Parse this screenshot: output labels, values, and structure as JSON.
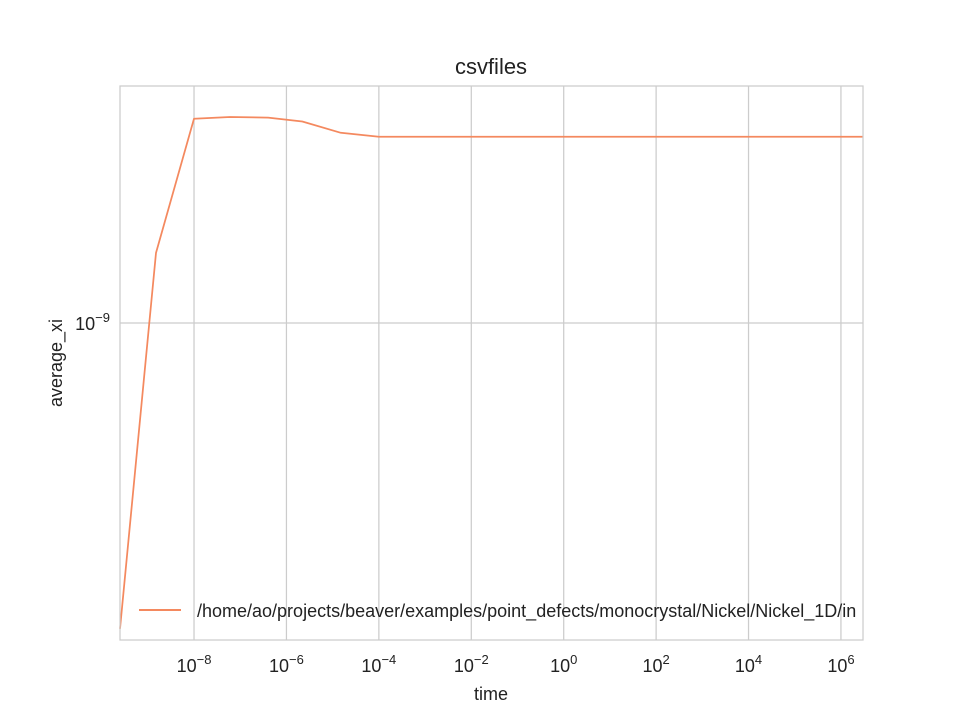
{
  "chart_data": {
    "type": "line",
    "title": "csvfiles",
    "xlabel": "time",
    "ylabel": "average_xi",
    "x_scale": "log",
    "y_scale": "log",
    "xlim": [
      2.5e-10,
      3000000.0
    ],
    "ylim": [
      6.5e-10,
      1.38e-09
    ],
    "x_ticks": [
      {
        "value": 1e-08,
        "base": "10",
        "exp": "−8"
      },
      {
        "value": 1e-06,
        "base": "10",
        "exp": "−6"
      },
      {
        "value": 0.0001,
        "base": "10",
        "exp": "−4"
      },
      {
        "value": 0.01,
        "base": "10",
        "exp": "−2"
      },
      {
        "value": 1,
        "base": "10",
        "exp": "0"
      },
      {
        "value": 100.0,
        "base": "10",
        "exp": "2"
      },
      {
        "value": 10000.0,
        "base": "10",
        "exp": "4"
      },
      {
        "value": 1000000.0,
        "base": "10",
        "exp": "6"
      }
    ],
    "y_ticks": [
      {
        "value": 1e-09,
        "base": "10",
        "exp": "−9"
      }
    ],
    "grid": true,
    "legend_position": "bottom-left",
    "series": [
      {
        "name": "/home/ao/projects/beaver/examples/point_defects/monocrystal/Nickel/Nickel_1D/in",
        "color": "#f4895f",
        "x": [
          2.5e-10,
          1.5e-09,
          1e-08,
          6e-08,
          4e-07,
          2.2e-06,
          1.5e-05,
          0.0001,
          0.001,
          0.1,
          10.0,
          1000.0,
          100000.0,
          3000000.0
        ],
        "y": [
          6.6e-10,
          1.1e-09,
          1.32e-09,
          1.323e-09,
          1.322e-09,
          1.315e-09,
          1.295e-09,
          1.288e-09,
          1.288e-09,
          1.288e-09,
          1.288e-09,
          1.288e-09,
          1.288e-09,
          1.288e-09
        ]
      }
    ]
  }
}
